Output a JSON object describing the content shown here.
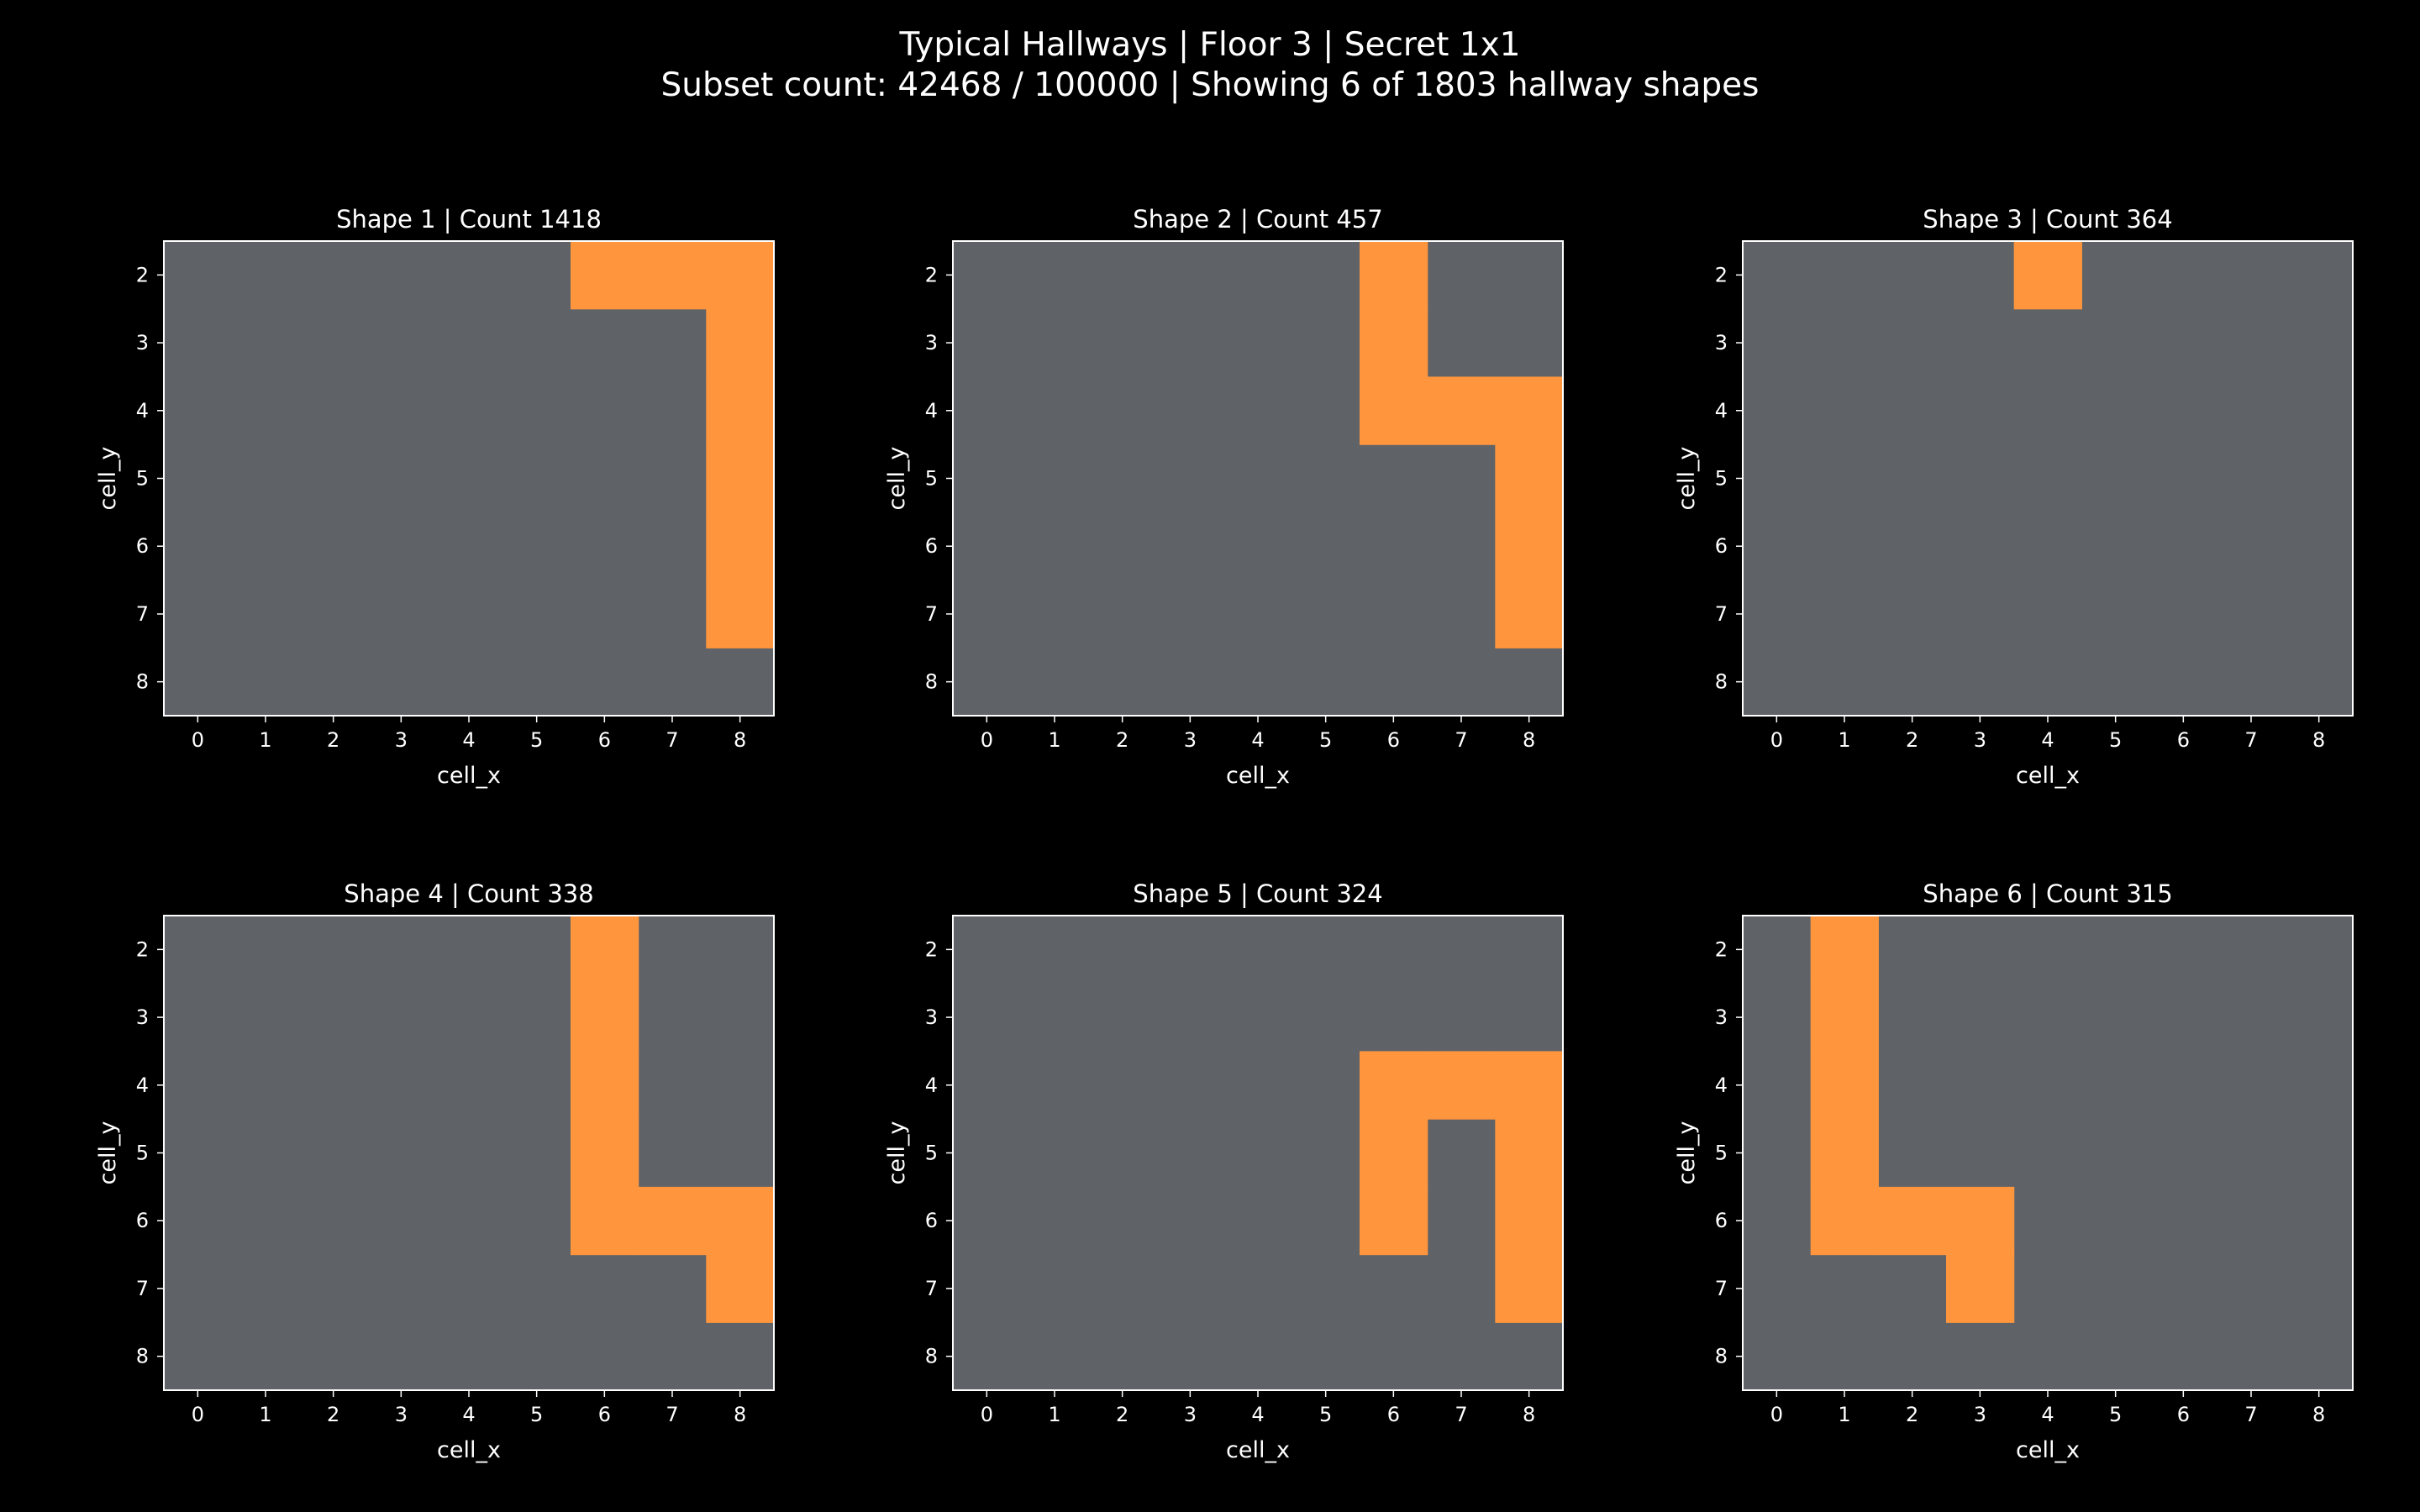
{
  "title": {
    "line1": "Typical Hallways | Floor 3 | Secret 1x1",
    "line2": "Subset count: 42468 / 100000 | Showing 6 of 1803 hallway shapes"
  },
  "colors": {
    "background": "#000000",
    "empty_cell": "#5f6368",
    "hallway_cell": "#ff953c",
    "frame": "#ffffff",
    "text": "#ffffff"
  },
  "chart_data": [
    {
      "type": "heatmap",
      "title": "Shape 1 | Count 1418",
      "xlabel": "cell_x",
      "ylabel": "cell_y",
      "x_ticks": [
        0,
        1,
        2,
        3,
        4,
        5,
        6,
        7,
        8
      ],
      "y_ticks": [
        2,
        3,
        4,
        5,
        6,
        7,
        8
      ],
      "xlim": [
        -0.5,
        8.5
      ],
      "ylim": [
        8.5,
        1.5
      ],
      "y_inverted": true,
      "grid": false,
      "hallway_cells": [
        [
          6,
          2
        ],
        [
          7,
          2
        ],
        [
          8,
          2
        ],
        [
          8,
          3
        ],
        [
          8,
          4
        ],
        [
          8,
          5
        ],
        [
          8,
          6
        ],
        [
          8,
          7
        ]
      ]
    },
    {
      "type": "heatmap",
      "title": "Shape 2 | Count 457",
      "xlabel": "cell_x",
      "ylabel": "cell_y",
      "x_ticks": [
        0,
        1,
        2,
        3,
        4,
        5,
        6,
        7,
        8
      ],
      "y_ticks": [
        2,
        3,
        4,
        5,
        6,
        7,
        8
      ],
      "xlim": [
        -0.5,
        8.5
      ],
      "ylim": [
        8.5,
        1.5
      ],
      "y_inverted": true,
      "grid": false,
      "hallway_cells": [
        [
          6,
          2
        ],
        [
          6,
          3
        ],
        [
          6,
          4
        ],
        [
          7,
          4
        ],
        [
          8,
          4
        ],
        [
          8,
          5
        ],
        [
          8,
          6
        ],
        [
          8,
          7
        ]
      ]
    },
    {
      "type": "heatmap",
      "title": "Shape 3 | Count 364",
      "xlabel": "cell_x",
      "ylabel": "cell_y",
      "x_ticks": [
        0,
        1,
        2,
        3,
        4,
        5,
        6,
        7,
        8
      ],
      "y_ticks": [
        2,
        3,
        4,
        5,
        6,
        7,
        8
      ],
      "xlim": [
        -0.5,
        8.5
      ],
      "ylim": [
        8.5,
        1.5
      ],
      "y_inverted": true,
      "grid": false,
      "hallway_cells": [
        [
          4,
          2
        ]
      ]
    },
    {
      "type": "heatmap",
      "title": "Shape 4 | Count 338",
      "xlabel": "cell_x",
      "ylabel": "cell_y",
      "x_ticks": [
        0,
        1,
        2,
        3,
        4,
        5,
        6,
        7,
        8
      ],
      "y_ticks": [
        2,
        3,
        4,
        5,
        6,
        7,
        8
      ],
      "xlim": [
        -0.5,
        8.5
      ],
      "ylim": [
        8.5,
        1.5
      ],
      "y_inverted": true,
      "grid": false,
      "hallway_cells": [
        [
          6,
          2
        ],
        [
          6,
          3
        ],
        [
          6,
          4
        ],
        [
          6,
          5
        ],
        [
          6,
          6
        ],
        [
          7,
          6
        ],
        [
          8,
          6
        ],
        [
          8,
          7
        ]
      ]
    },
    {
      "type": "heatmap",
      "title": "Shape 5 | Count 324",
      "xlabel": "cell_x",
      "ylabel": "cell_y",
      "x_ticks": [
        0,
        1,
        2,
        3,
        4,
        5,
        6,
        7,
        8
      ],
      "y_ticks": [
        2,
        3,
        4,
        5,
        6,
        7,
        8
      ],
      "xlim": [
        -0.5,
        8.5
      ],
      "ylim": [
        8.5,
        1.5
      ],
      "y_inverted": true,
      "grid": false,
      "hallway_cells": [
        [
          6,
          4
        ],
        [
          7,
          4
        ],
        [
          8,
          4
        ],
        [
          6,
          5
        ],
        [
          8,
          5
        ],
        [
          6,
          6
        ],
        [
          8,
          6
        ],
        [
          8,
          7
        ]
      ]
    },
    {
      "type": "heatmap",
      "title": "Shape 6 | Count 315",
      "xlabel": "cell_x",
      "ylabel": "cell_y",
      "x_ticks": [
        0,
        1,
        2,
        3,
        4,
        5,
        6,
        7,
        8
      ],
      "y_ticks": [
        2,
        3,
        4,
        5,
        6,
        7,
        8
      ],
      "xlim": [
        -0.5,
        8.5
      ],
      "ylim": [
        8.5,
        1.5
      ],
      "y_inverted": true,
      "grid": false,
      "hallway_cells": [
        [
          1,
          2
        ],
        [
          1,
          3
        ],
        [
          1,
          4
        ],
        [
          1,
          5
        ],
        [
          1,
          6
        ],
        [
          2,
          6
        ],
        [
          3,
          6
        ],
        [
          3,
          7
        ]
      ]
    }
  ]
}
